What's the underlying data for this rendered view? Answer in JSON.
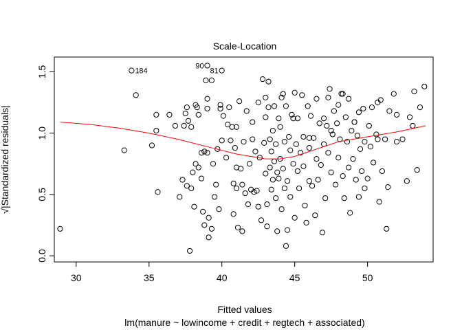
{
  "chart_data": {
    "type": "scatter",
    "title": "Scale-Location",
    "xlabel": "Fitted values",
    "subtitle": "lm(manure ~ lowincome + credit + regtech + associated)",
    "ylabel": "√|Standardized residuals|",
    "xlim": [
      28.5,
      54.5
    ],
    "ylim": [
      -0.05,
      1.62
    ],
    "xticks": [
      30,
      35,
      40,
      45,
      50
    ],
    "yticks": [
      0.0,
      0.5,
      1.0,
      1.5
    ],
    "xtick_labels": [
      "30",
      "35",
      "40",
      "45",
      "50"
    ],
    "ytick_labels": [
      "0.0",
      "0.5",
      "1.0",
      "1.5"
    ],
    "grid": false,
    "point_color": "#000000",
    "smooth_color": "#ff0000",
    "labeled_points": [
      {
        "label": "184",
        "x": 33.8,
        "y": 1.51
      },
      {
        "label": "90",
        "x": 39.0,
        "y": 1.55
      },
      {
        "label": "81",
        "x": 40.0,
        "y": 1.51
      }
    ],
    "smooth_line": {
      "x": [
        28.9,
        31,
        33,
        35,
        37,
        39,
        41,
        43,
        44,
        45,
        46,
        47,
        48,
        50,
        52,
        54
      ],
      "y": [
        1.09,
        1.07,
        1.04,
        1.0,
        0.95,
        0.89,
        0.83,
        0.79,
        0.79,
        0.81,
        0.85,
        0.89,
        0.93,
        0.97,
        1.01,
        1.06
      ]
    },
    "points": [
      [
        28.9,
        0.22
      ],
      [
        33.3,
        0.86
      ],
      [
        34.1,
        1.31
      ],
      [
        35.2,
        0.9
      ],
      [
        35.5,
        1.15
      ],
      [
        35.5,
        1.02
      ],
      [
        35.6,
        0.52
      ],
      [
        36.4,
        1.15
      ],
      [
        36.8,
        1.06
      ],
      [
        37.1,
        0.48
      ],
      [
        37.3,
        0.62
      ],
      [
        37.4,
        1.06
      ],
      [
        37.5,
        1.16
      ],
      [
        37.6,
        1.21
      ],
      [
        37.6,
        0.57
      ],
      [
        37.7,
        1.1
      ],
      [
        37.8,
        0.04
      ],
      [
        37.9,
        1.05
      ],
      [
        37.9,
        0.55
      ],
      [
        38.0,
        0.68
      ],
      [
        38.1,
        0.4
      ],
      [
        38.2,
        1.23
      ],
      [
        38.2,
        0.75
      ],
      [
        38.3,
        1.21
      ],
      [
        38.4,
        1.15
      ],
      [
        38.4,
        0.72
      ],
      [
        38.6,
        0.63
      ],
      [
        38.6,
        0.84
      ],
      [
        38.7,
        0.36
      ],
      [
        38.8,
        0.25
      ],
      [
        38.8,
        0.85
      ],
      [
        38.9,
        1.43
      ],
      [
        39.0,
        1.28
      ],
      [
        39.0,
        1.2
      ],
      [
        39.0,
        0.84
      ],
      [
        39.1,
        0.15
      ],
      [
        39.1,
        0.31
      ],
      [
        39.3,
        1.43
      ],
      [
        39.3,
        0.22
      ],
      [
        39.4,
        0.75
      ],
      [
        39.5,
        0.48
      ],
      [
        39.6,
        0.58
      ],
      [
        39.7,
        0.87
      ],
      [
        39.8,
        0.38
      ],
      [
        39.9,
        1.2
      ],
      [
        39.9,
        1.23
      ],
      [
        40.0,
        0.94
      ],
      [
        40.1,
        1.14
      ],
      [
        40.3,
        0.8
      ],
      [
        40.4,
        1.07
      ],
      [
        40.5,
        1.21
      ],
      [
        40.6,
        0.94
      ],
      [
        40.7,
        1.05
      ],
      [
        40.8,
        0.59
      ],
      [
        40.8,
        0.34
      ],
      [
        40.9,
        0.88
      ],
      [
        41.0,
        0.72
      ],
      [
        41.0,
        0.55
      ],
      [
        41.0,
        1.05
      ],
      [
        41.1,
        0.23
      ],
      [
        41.2,
        1.26
      ],
      [
        41.3,
        0.71
      ],
      [
        41.4,
        0.2
      ],
      [
        41.4,
        0.58
      ],
      [
        41.5,
        0.93
      ],
      [
        41.6,
        0.51
      ],
      [
        41.7,
        1.18
      ],
      [
        41.8,
        0.42
      ],
      [
        41.9,
        0.75
      ],
      [
        42.0,
        0.54
      ],
      [
        42.1,
        0.95
      ],
      [
        42.1,
        1.09
      ],
      [
        42.2,
        0.52
      ],
      [
        42.3,
        0.85
      ],
      [
        42.4,
        0.53
      ],
      [
        42.5,
        1.25
      ],
      [
        42.5,
        0.4
      ],
      [
        42.6,
        0.8
      ],
      [
        42.7,
        0.29
      ],
      [
        42.8,
        1.44
      ],
      [
        42.9,
        0.92
      ],
      [
        43.0,
        0.67
      ],
      [
        43.0,
        1.13
      ],
      [
        43.1,
        0.42
      ],
      [
        43.1,
        0.24
      ],
      [
        43.2,
        1.21
      ],
      [
        43.2,
        1.42
      ],
      [
        43.3,
        0.95
      ],
      [
        43.3,
        0.72
      ],
      [
        43.4,
        0.85
      ],
      [
        43.4,
        0.54
      ],
      [
        43.5,
        0.62
      ],
      [
        43.5,
        1.02
      ],
      [
        43.6,
        1.22
      ],
      [
        43.6,
        0.77
      ],
      [
        43.7,
        0.91
      ],
      [
        43.7,
        0.47
      ],
      [
        43.8,
        0.2
      ],
      [
        43.8,
        0.68
      ],
      [
        43.9,
        1.12
      ],
      [
        43.9,
        0.63
      ],
      [
        44.0,
        0.79
      ],
      [
        44.0,
        1.05
      ],
      [
        44.1,
        1.29
      ],
      [
        44.1,
        0.38
      ],
      [
        44.2,
        1.32
      ],
      [
        44.2,
        0.71
      ],
      [
        44.3,
        0.93
      ],
      [
        44.3,
        0.55
      ],
      [
        44.4,
        1.22
      ],
      [
        44.4,
        0.08
      ],
      [
        44.5,
        0.21
      ],
      [
        44.5,
        0.61
      ],
      [
        44.6,
        0.97
      ],
      [
        44.7,
        0.48
      ],
      [
        44.7,
        0.86
      ],
      [
        44.8,
        1.15
      ],
      [
        44.9,
        0.75
      ],
      [
        45.0,
        0.31
      ],
      [
        45.0,
        1.33
      ],
      [
        45.1,
        0.91
      ],
      [
        45.2,
        0.69
      ],
      [
        45.2,
        1.12
      ],
      [
        45.3,
        0.55
      ],
      [
        45.4,
        0.84
      ],
      [
        45.5,
        1.31
      ],
      [
        45.6,
        0.73
      ],
      [
        45.6,
        0.97
      ],
      [
        45.7,
        0.41
      ],
      [
        45.8,
        0.27
      ],
      [
        45.9,
        1.22
      ],
      [
        46.0,
        0.88
      ],
      [
        46.0,
        0.61
      ],
      [
        46.1,
        1.14
      ],
      [
        46.2,
        0.57
      ],
      [
        46.3,
        0.96
      ],
      [
        46.4,
        0.33
      ],
      [
        46.5,
        1.28
      ],
      [
        46.5,
        0.79
      ],
      [
        46.6,
        0.62
      ],
      [
        46.7,
        1.08
      ],
      [
        46.8,
        0.74
      ],
      [
        46.9,
        0.19
      ],
      [
        47.0,
        0.91
      ],
      [
        47.0,
        1.12
      ],
      [
        47.1,
        0.47
      ],
      [
        47.2,
        1.06
      ],
      [
        47.3,
        1.29
      ],
      [
        47.3,
        0.84
      ],
      [
        47.4,
        1.36
      ],
      [
        47.5,
        0.68
      ],
      [
        47.6,
        0.99
      ],
      [
        47.7,
        1.18
      ],
      [
        47.8,
        0.58
      ],
      [
        47.9,
        1.08
      ],
      [
        48.0,
        0.8
      ],
      [
        48.0,
        1.23
      ],
      [
        48.1,
        0.95
      ],
      [
        48.2,
        1.32
      ],
      [
        48.3,
        0.65
      ],
      [
        48.3,
        1.32
      ],
      [
        48.4,
        0.47
      ],
      [
        48.5,
        1.13
      ],
      [
        48.6,
        0.93
      ],
      [
        48.7,
        0.72
      ],
      [
        48.7,
        1.28
      ],
      [
        48.8,
        0.35
      ],
      [
        48.9,
        1.02
      ],
      [
        49.0,
        0.79
      ],
      [
        49.1,
        1.09
      ],
      [
        49.2,
        0.62
      ],
      [
        49.3,
        0.98
      ],
      [
        49.4,
        0.48
      ],
      [
        49.4,
        1.17
      ],
      [
        49.5,
        0.87
      ],
      [
        49.6,
        0.69
      ],
      [
        49.7,
        1.2
      ],
      [
        49.8,
        0.55
      ],
      [
        49.8,
        0.93
      ],
      [
        50.0,
        0.63
      ],
      [
        50.1,
        1.06
      ],
      [
        50.2,
        0.89
      ],
      [
        50.3,
        1.21
      ],
      [
        50.4,
        0.76
      ],
      [
        50.6,
        0.99
      ],
      [
        50.7,
        0.95
      ],
      [
        50.8,
        0.44
      ],
      [
        50.9,
        1.27
      ],
      [
        51.0,
        0.69
      ],
      [
        51.2,
        0.95
      ],
      [
        51.3,
        0.22
      ],
      [
        51.4,
        0.56
      ],
      [
        51.5,
        1.18
      ],
      [
        51.8,
        1.32
      ],
      [
        52.0,
        0.93
      ],
      [
        52.4,
        0.95
      ],
      [
        52.7,
        0.61
      ],
      [
        52.9,
        1.13
      ],
      [
        53.2,
        1.34
      ],
      [
        53.4,
        0.7
      ],
      [
        53.6,
        1.21
      ],
      [
        53.9,
        1.38
      ],
      [
        53.1,
        1.06
      ],
      [
        52.0,
        1.15
      ],
      [
        50.7,
        1.25
      ],
      [
        49.1,
        1.09
      ],
      [
        47.5,
        1.02
      ],
      [
        46.0,
        0.96
      ],
      [
        44.9,
        1.12
      ],
      [
        43.0,
        1.29
      ]
    ]
  }
}
